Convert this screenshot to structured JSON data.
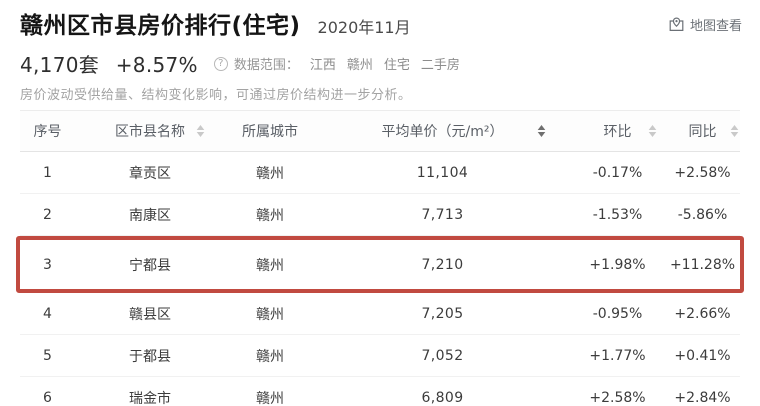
{
  "header": {
    "title": "赣州区市县房价排行(住宅)",
    "date": "2020年11月",
    "map_link_label": "地图查看",
    "listing_count": "4,170套",
    "listing_change": "+8.57%",
    "scope_label": "数据范围：",
    "scope_tags": [
      "江西",
      "赣州",
      "住宅",
      "二手房"
    ],
    "subtitle": "房价波动受供给量、结构变化影响，可通过房价结构进一步分析。"
  },
  "icons": {
    "info_glyph": "?"
  },
  "colors": {
    "highlight_border": "#c14a40",
    "sort_inactive": "#c9c9c9",
    "sort_active": "#6f6f6f"
  },
  "table": {
    "columns": [
      "序号",
      "区市县名称",
      "所属城市",
      "平均单价（元/m²）",
      "环比",
      "同比"
    ],
    "sorted_by": "平均单价（元/m²）",
    "rows": [
      {
        "rank": "1",
        "name": "章贡区",
        "city": "赣州",
        "price": "11,104",
        "mom": "-0.17%",
        "yoy": "+2.58%",
        "highlighted": false
      },
      {
        "rank": "2",
        "name": "南康区",
        "city": "赣州",
        "price": "7,713",
        "mom": "-1.53%",
        "yoy": "-5.86%",
        "highlighted": false
      },
      {
        "rank": "3",
        "name": "宁都县",
        "city": "赣州",
        "price": "7,210",
        "mom": "+1.98%",
        "yoy": "+11.28%",
        "highlighted": true
      },
      {
        "rank": "4",
        "name": "赣县区",
        "city": "赣州",
        "price": "7,205",
        "mom": "-0.95%",
        "yoy": "+2.66%",
        "highlighted": false
      },
      {
        "rank": "5",
        "name": "于都县",
        "city": "赣州",
        "price": "7,052",
        "mom": "+1.77%",
        "yoy": "+0.41%",
        "highlighted": false
      },
      {
        "rank": "6",
        "name": "瑞金市",
        "city": "赣州",
        "price": "6,809",
        "mom": "+2.58%",
        "yoy": "+2.84%",
        "highlighted": false
      }
    ]
  }
}
